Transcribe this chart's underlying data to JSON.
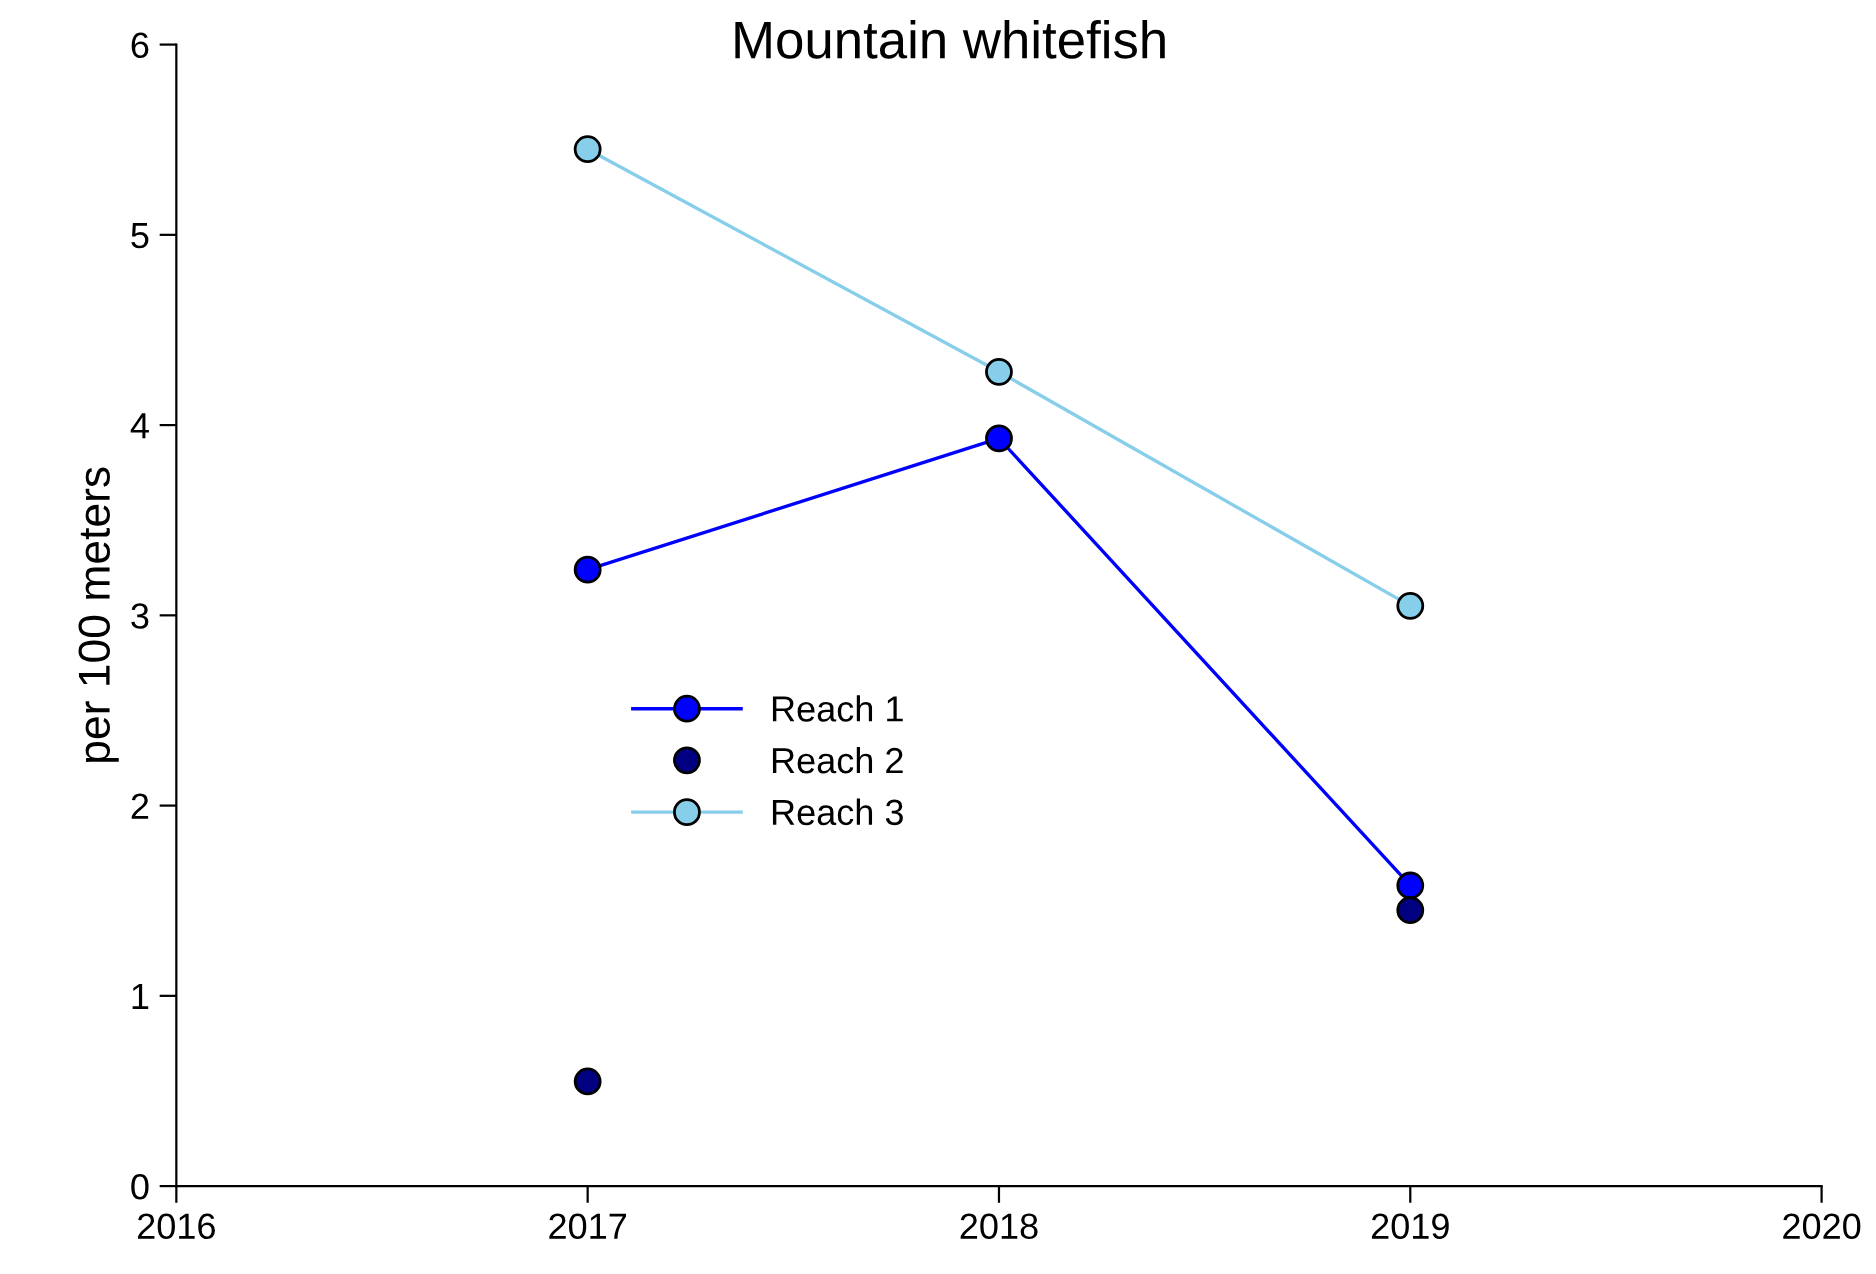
{
  "chart_data": {
    "type": "line",
    "title": "Mountain whitefish",
    "ylabel": "per 100 meters",
    "x": [
      2017,
      2018,
      2019
    ],
    "series": [
      {
        "name": "Reach 1",
        "color": "#0000ff",
        "values": [
          3.24,
          3.93,
          1.58
        ]
      },
      {
        "name": "Reach 2",
        "color": "#000080",
        "type": "scatter",
        "values": [
          0.55,
          null,
          1.45
        ]
      },
      {
        "name": "Reach 3",
        "color": "#87ceeb",
        "values": [
          5.45,
          4.28,
          3.05
        ]
      }
    ],
    "xlim": [
      2016,
      2020
    ],
    "xticks": [
      2016,
      2017,
      2018,
      2019,
      2020
    ],
    "ylim": [
      0,
      6
    ],
    "yticks": [
      0,
      1,
      2,
      3,
      4,
      5,
      6
    ],
    "marker": "circle",
    "line_style": "solid",
    "grid": false,
    "legend": "center"
  }
}
